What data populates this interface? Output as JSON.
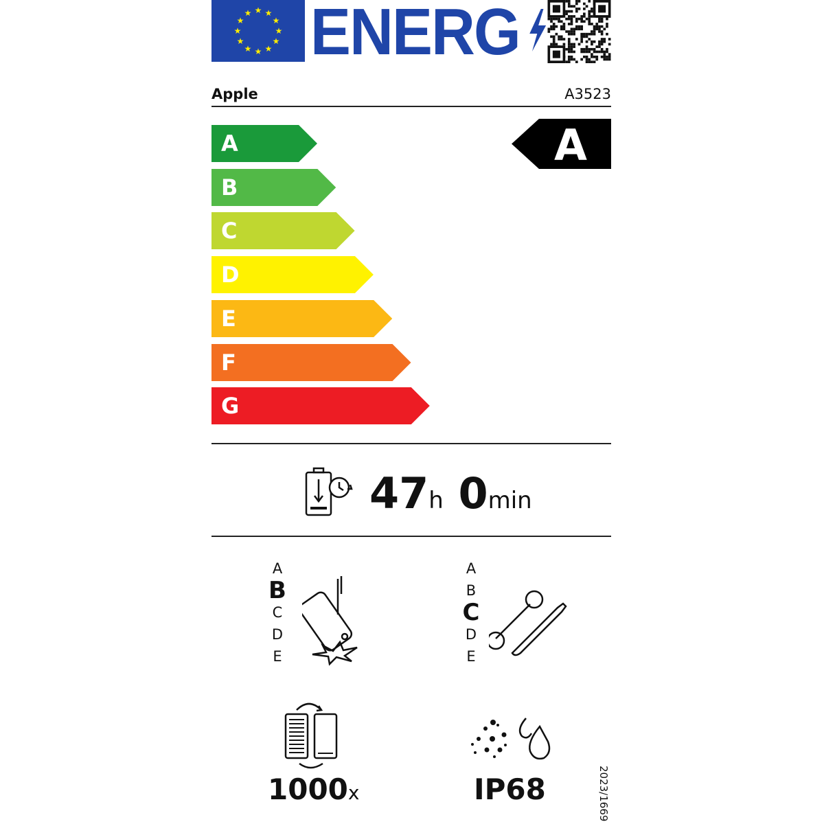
{
  "header": {
    "logo_text": "ENERG",
    "flag": "eu-flag",
    "qr": "qr-code-icon"
  },
  "supplier": "Apple",
  "model": "A3523",
  "classes": [
    {
      "letter": "A",
      "color": "#1a9a3a"
    },
    {
      "letter": "B",
      "color": "#52b947"
    },
    {
      "letter": "C",
      "color": "#bfd730"
    },
    {
      "letter": "D",
      "color": "#fff200"
    },
    {
      "letter": "E",
      "color": "#fcb814"
    },
    {
      "letter": "F",
      "color": "#f36f21"
    },
    {
      "letter": "G",
      "color": "#ed1c24"
    }
  ],
  "energy_class": "A",
  "battery_endurance": {
    "hours": "47",
    "hours_unit": "h",
    "minutes": "0",
    "minutes_unit": "min"
  },
  "drop_resistance": {
    "scale": [
      "A",
      "B",
      "C",
      "D",
      "E"
    ],
    "selected": "B"
  },
  "repairability": {
    "scale": [
      "A",
      "B",
      "C",
      "D",
      "E"
    ],
    "selected": "C"
  },
  "battery_cycles": {
    "value": "1000",
    "unit": "x"
  },
  "ingress_protection": "IP68",
  "regulation": "2023/1669"
}
